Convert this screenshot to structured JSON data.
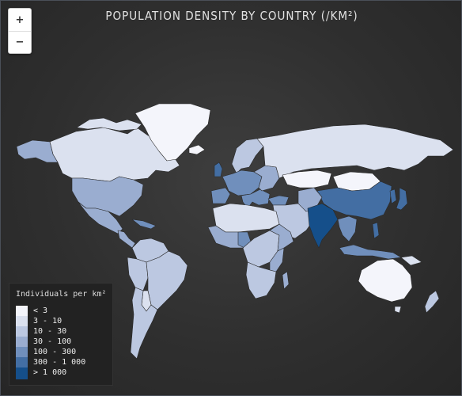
{
  "map": {
    "title": "POPULATION DENSITY BY COUNTRY (/KM²)",
    "zoom_in_label": "+",
    "zoom_out_label": "−"
  },
  "legend": {
    "title": "Individuals per km²",
    "items": [
      {
        "label": "< 3",
        "color": "#f4f5fb"
      },
      {
        "label": "3 - 10",
        "color": "#dbe1ef"
      },
      {
        "label": "10 - 30",
        "color": "#bcc8e1"
      },
      {
        "label": "30 - 100",
        "color": "#9aadd0"
      },
      {
        "label": "100 - 300",
        "color": "#708fbc"
      },
      {
        "label": "300 - 1 000",
        "color": "#436ea3"
      },
      {
        "label": "> 1 000",
        "color": "#154f8a"
      }
    ]
  }
}
